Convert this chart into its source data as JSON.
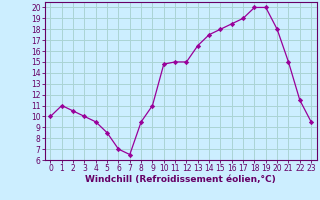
{
  "x": [
    0,
    1,
    2,
    3,
    4,
    5,
    6,
    7,
    8,
    9,
    10,
    11,
    12,
    13,
    14,
    15,
    16,
    17,
    18,
    19,
    20,
    21,
    22,
    23
  ],
  "y": [
    10,
    11,
    10.5,
    10,
    9.5,
    8.5,
    7,
    6.5,
    9.5,
    11,
    14.8,
    15,
    15,
    16.5,
    17.5,
    18,
    18.5,
    19,
    20,
    20,
    18,
    15,
    11.5,
    9.5
  ],
  "line_color": "#990099",
  "marker": "D",
  "marker_size": 2.2,
  "background_color": "#cceeff",
  "grid_color": "#aad4d4",
  "xlabel": "Windchill (Refroidissement éolien,°C)",
  "xlabel_fontsize": 6.5,
  "ylim": [
    6,
    20.5
  ],
  "xlim": [
    -0.5,
    23.5
  ],
  "yticks": [
    6,
    7,
    8,
    9,
    10,
    11,
    12,
    13,
    14,
    15,
    16,
    17,
    18,
    19,
    20
  ],
  "xticks": [
    0,
    1,
    2,
    3,
    4,
    5,
    6,
    7,
    8,
    9,
    10,
    11,
    12,
    13,
    14,
    15,
    16,
    17,
    18,
    19,
    20,
    21,
    22,
    23
  ],
  "tick_fontsize": 5.5,
  "axis_color": "#660066",
  "spine_color": "#660066",
  "xlabel_bold": true
}
